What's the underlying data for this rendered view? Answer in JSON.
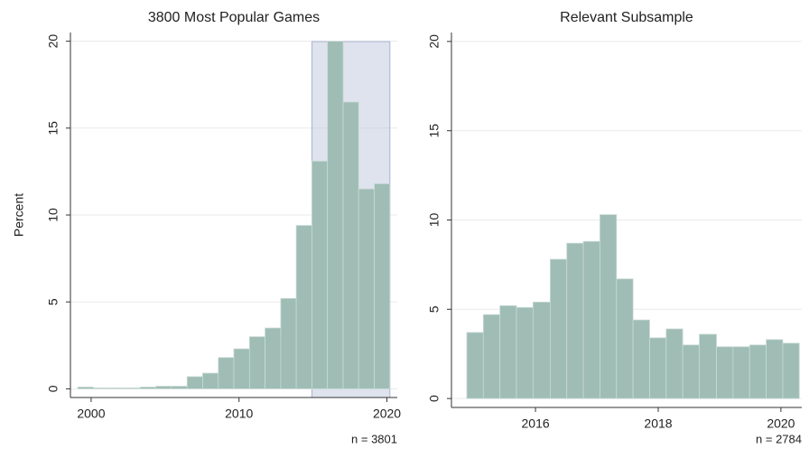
{
  "chart_data": [
    {
      "type": "histogram",
      "title": "3800 Most Popular Games",
      "ylabel": "Percent",
      "annotation": "n = 3801",
      "bins": [
        1999.1,
        2000.16,
        2001.21,
        2002.27,
        2003.32,
        2004.38,
        2005.43,
        2006.49,
        2007.54,
        2008.6,
        2009.65,
        2010.71,
        2011.76,
        2012.82,
        2013.87,
        2014.93,
        2015.98,
        2017.04,
        2018.09,
        2019.15,
        2020.2
      ],
      "values": [
        0.1,
        0.05,
        0.05,
        0.05,
        0.1,
        0.15,
        0.15,
        0.7,
        0.9,
        1.8,
        2.3,
        3.0,
        3.5,
        5.2,
        9.4,
        13.1,
        20,
        16.5,
        11.5,
        11.8
      ],
      "color": "#9fbdb5",
      "shaded": [
        2014.93,
        2020.2
      ],
      "shade_color": "#b8c1da",
      "xlim": [
        1998.6,
        2020.7
      ],
      "ylim": [
        -0.5,
        20.5
      ],
      "xticks": [
        2000,
        2010,
        2020
      ],
      "yticks": [
        0,
        5,
        10,
        15,
        20
      ],
      "grid": true
    },
    {
      "type": "histogram",
      "title": "Relevant Subsample",
      "annotation": "n = 2784",
      "bins": [
        2014.88,
        2015.15,
        2015.42,
        2015.69,
        2015.96,
        2016.24,
        2016.51,
        2016.78,
        2017.05,
        2017.32,
        2017.59,
        2017.86,
        2018.13,
        2018.4,
        2018.67,
        2018.95,
        2019.22,
        2019.49,
        2019.76,
        2020.03,
        2020.3
      ],
      "values": [
        3.7,
        4.7,
        5.2,
        5.1,
        5.4,
        7.8,
        8.7,
        8.8,
        10.3,
        6.7,
        4.4,
        3.4,
        3.9,
        3.0,
        3.6,
        2.9,
        2.9,
        3.0,
        3.3,
        3.1
      ],
      "color": "#9fbdb5",
      "xlim": [
        2014.63,
        2020.34
      ],
      "ylim": [
        -0.5,
        20.5
      ],
      "xticks": [
        2016,
        2018,
        2020
      ],
      "yticks": [
        0,
        5,
        10,
        15,
        20
      ],
      "grid": true
    }
  ]
}
